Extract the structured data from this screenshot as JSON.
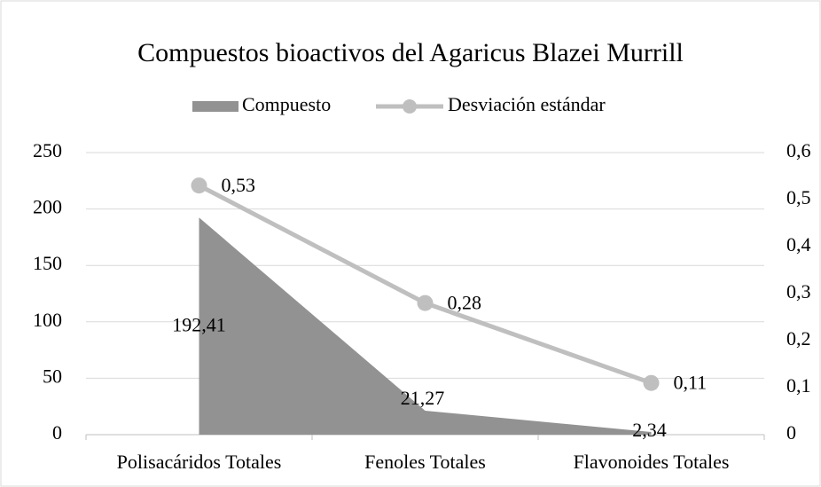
{
  "chart_data": {
    "type": "area_line",
    "title": "Compuestos bioactivos del Agaricus Blazei Murrill",
    "categories": [
      "Polisacáridos Totales",
      "Fenoles Totales",
      "Flavonoides Totales"
    ],
    "series": [
      {
        "name": "Compuesto",
        "type": "area",
        "color": "#929292",
        "values": [
          192.41,
          21.27,
          2.34
        ],
        "value_labels": [
          "192,41",
          "21,27",
          "2,34"
        ]
      },
      {
        "name": "Desviación estándar",
        "type": "line",
        "axis": "y2",
        "color": "#bfbfbf",
        "values": [
          0.53,
          0.28,
          0.11
        ],
        "value_labels": [
          "0,53",
          "0,28",
          "0,11"
        ]
      }
    ],
    "ylim": [
      0,
      250
    ],
    "yticks": [
      0,
      50,
      100,
      150,
      200,
      250
    ],
    "y2lim": [
      0,
      0.6
    ],
    "y2ticks": [
      0,
      {
        "value": 0.1,
        "label": "0,1"
      },
      {
        "value": 0.2,
        "label": "0,2"
      },
      {
        "value": 0.3,
        "label": "0,3"
      },
      {
        "value": 0.4,
        "label": "0,4"
      },
      {
        "value": 0.5,
        "label": "0,5"
      },
      {
        "value": 0.6,
        "label": "0,6"
      }
    ],
    "grid": true,
    "legend": "top"
  }
}
